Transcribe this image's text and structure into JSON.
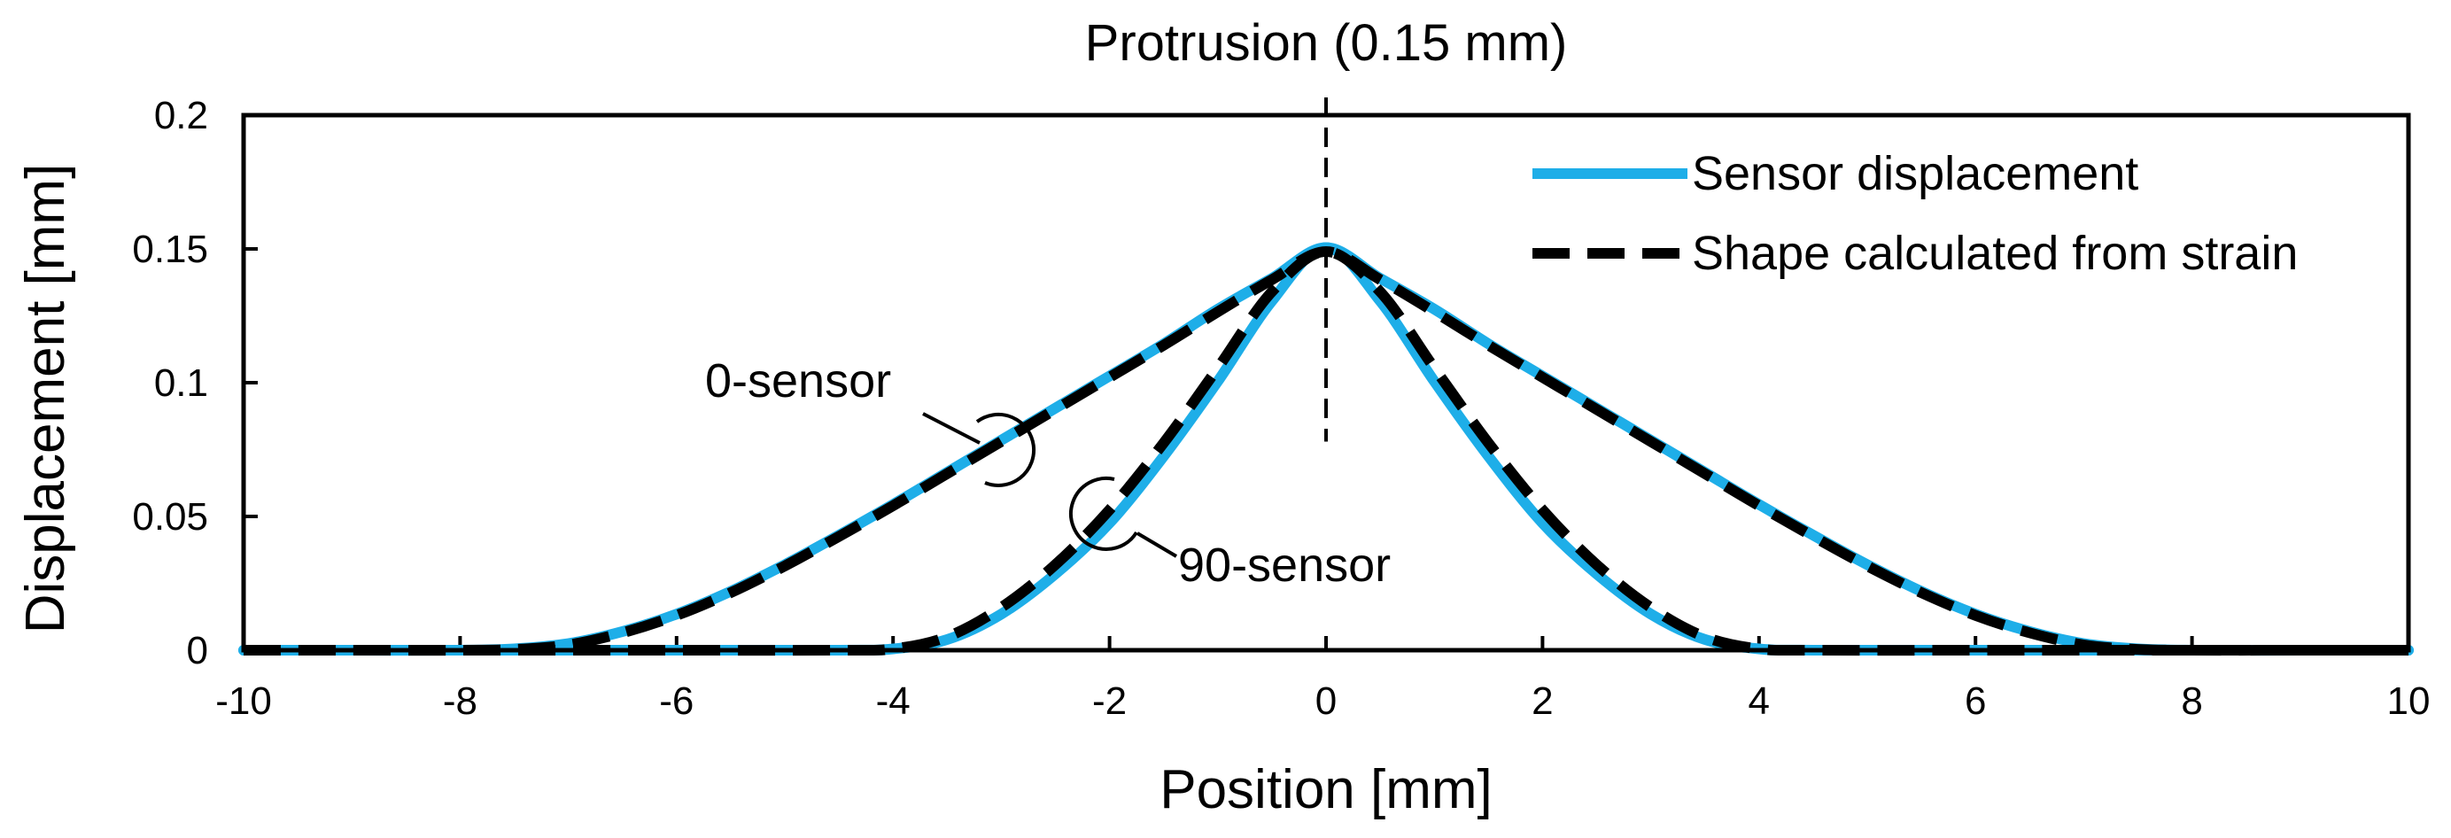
{
  "chart_data": {
    "type": "line",
    "title": "Protrusion (0.15 mm)",
    "xlabel": "Position [mm]",
    "ylabel": "Displacement [mm]",
    "xlim": [
      -10,
      10
    ],
    "ylim": [
      0,
      0.2
    ],
    "xticks": [
      -10,
      -8,
      -6,
      -4,
      -2,
      0,
      2,
      4,
      6,
      8,
      10
    ],
    "yticks": [
      0,
      0.05,
      0.1,
      0.15,
      0.2
    ],
    "xtick_labels": [
      "-10",
      "-8",
      "-6",
      "-4",
      "-2",
      "0",
      "2",
      "4",
      "6",
      "8",
      "10"
    ],
    "ytick_labels": [
      "0",
      "0.05",
      "0.1",
      "0.15",
      "0.2"
    ],
    "grid": false,
    "legend_position": "top-right",
    "reference_line": {
      "x": 0,
      "y_range": [
        0.078,
        0.2
      ],
      "style": "dashed"
    },
    "legend": [
      {
        "label": "Sensor displacement",
        "style": "solid",
        "color": "#1EAEE8"
      },
      {
        "label": "Shape calculated from strain",
        "style": "dashed",
        "color": "#000000"
      }
    ],
    "annotations": [
      {
        "text": "0-sensor",
        "target": [
          -3.1,
          0.073
        ]
      },
      {
        "text": "90-sensor",
        "target": [
          -2.0,
          0.052
        ]
      }
    ],
    "series": [
      {
        "name": "Sensor displacement (0-sensor)",
        "style": "solid",
        "color": "#1EAEE8",
        "x": [
          -10,
          -9,
          -8,
          -7.5,
          -7,
          -6.5,
          -6,
          -5.5,
          -5,
          -4.5,
          -4,
          -3.5,
          -3,
          -2.5,
          -2,
          -1.5,
          -1,
          -0.5,
          0,
          0.5,
          1,
          1.5,
          2,
          2.5,
          3,
          3.5,
          4,
          4.5,
          5,
          5.5,
          6,
          6.5,
          7,
          7.5,
          8,
          9,
          10
        ],
        "y": [
          0,
          0,
          0,
          0.0005,
          0.0025,
          0.007,
          0.0135,
          0.022,
          0.032,
          0.043,
          0.0545,
          0.0665,
          0.0785,
          0.0905,
          0.1025,
          0.1145,
          0.1275,
          0.139,
          0.1505,
          0.139,
          0.1275,
          0.1145,
          0.1025,
          0.0905,
          0.0785,
          0.0665,
          0.0545,
          0.043,
          0.032,
          0.022,
          0.0135,
          0.007,
          0.0025,
          0.0005,
          0,
          0,
          0
        ]
      },
      {
        "name": "Shape calculated from strain (0-sensor)",
        "style": "dashed",
        "color": "#000000",
        "x": [
          -10,
          -9,
          -8,
          -7.5,
          -7,
          -6.5,
          -6,
          -5.5,
          -5,
          -4.5,
          -4,
          -3.5,
          -3,
          -2.5,
          -2,
          -1.5,
          -1,
          -0.5,
          0,
          0.5,
          1,
          1.5,
          2,
          2.5,
          3,
          3.5,
          4,
          4.5,
          5,
          5.5,
          6,
          6.5,
          7,
          7.5,
          8,
          9,
          10
        ],
        "y": [
          0,
          0,
          0,
          0.0003,
          0.002,
          0.0065,
          0.013,
          0.0215,
          0.0315,
          0.0425,
          0.054,
          0.066,
          0.078,
          0.09,
          0.102,
          0.114,
          0.1265,
          0.1385,
          0.149,
          0.1385,
          0.1265,
          0.114,
          0.102,
          0.09,
          0.078,
          0.066,
          0.054,
          0.0425,
          0.0315,
          0.0215,
          0.013,
          0.0065,
          0.002,
          0.0003,
          0,
          0,
          0
        ]
      },
      {
        "name": "Sensor displacement (90-sensor)",
        "style": "solid",
        "color": "#1EAEE8",
        "x": [
          -10,
          -8,
          -6,
          -4.5,
          -4,
          -3.5,
          -3,
          -2.5,
          -2,
          -1.5,
          -1,
          -0.5,
          0,
          0.5,
          1,
          1.5,
          2,
          2.5,
          3,
          3.5,
          4,
          4.5,
          6,
          8,
          10
        ],
        "y": [
          0,
          0,
          0,
          0,
          0.0005,
          0.004,
          0.0135,
          0.0285,
          0.0475,
          0.0725,
          0.1005,
          0.1305,
          0.1505,
          0.1305,
          0.1005,
          0.0725,
          0.0475,
          0.0285,
          0.0135,
          0.004,
          0.0005,
          0,
          0,
          0,
          0
        ]
      },
      {
        "name": "Shape calculated from strain (90-sensor)",
        "style": "dashed",
        "color": "#000000",
        "x": [
          -10,
          -8,
          -6,
          -4.5,
          -4,
          -3.5,
          -3,
          -2.5,
          -2,
          -1.5,
          -1,
          -0.5,
          0,
          0.5,
          1,
          1.5,
          2,
          2.5,
          3,
          3.5,
          4,
          4.5,
          6,
          8,
          10
        ],
        "y": [
          0,
          0,
          0,
          0,
          0.0005,
          0.005,
          0.016,
          0.032,
          0.0525,
          0.0775,
          0.1055,
          0.134,
          0.149,
          0.134,
          0.1055,
          0.0775,
          0.0525,
          0.032,
          0.016,
          0.005,
          0.0005,
          0,
          0,
          0,
          0
        ]
      }
    ]
  }
}
